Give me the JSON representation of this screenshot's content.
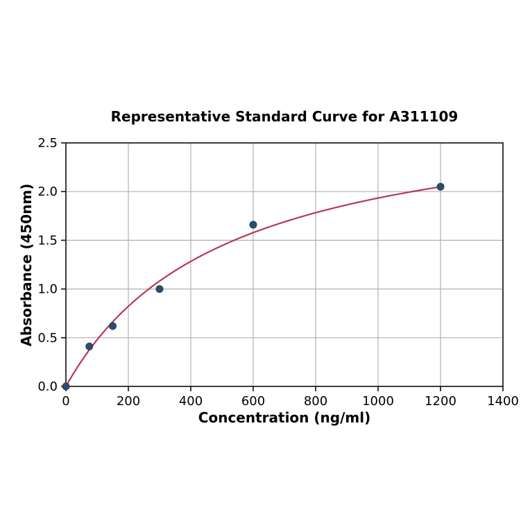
{
  "chart_data": {
    "type": "scatter",
    "title": "Representative Standard Curve for A311109",
    "xlabel": "Concentration (ng/ml)",
    "ylabel": "Absorbance (450nm)",
    "xlim": [
      0,
      1400
    ],
    "ylim": [
      0.0,
      2.5
    ],
    "x_ticks": [
      0,
      200,
      400,
      600,
      800,
      1000,
      1200,
      1400
    ],
    "x_tick_labels": [
      "0",
      "200",
      "400",
      "600",
      "800",
      "1000",
      "1200",
      "1400"
    ],
    "y_ticks": [
      0.0,
      0.5,
      1.0,
      1.5,
      2.0,
      2.5
    ],
    "y_tick_labels": [
      "0.0",
      "0.5",
      "1.0",
      "1.5",
      "2.0",
      "2.5"
    ],
    "grid": true,
    "legend": false,
    "series": [
      {
        "name": "standard-points",
        "type": "scatter",
        "x": [
          0,
          75,
          150,
          300,
          600,
          1200
        ],
        "y": [
          0.0,
          0.41,
          0.62,
          1.0,
          1.66,
          2.05
        ]
      },
      {
        "name": "fit-curve",
        "type": "line",
        "model": "michaelis_menten",
        "params": {
          "vmax": 2.92,
          "km": 510
        },
        "x_range": [
          0,
          1200
        ]
      }
    ],
    "colors": {
      "curve": "#b5365b",
      "point_fill": "#2d4d6e",
      "point_edge": "#203d5a",
      "grid": "#b0b0b0",
      "axis": "#1a1a1a",
      "tick_text": "#000000",
      "background": "#ffffff"
    }
  }
}
